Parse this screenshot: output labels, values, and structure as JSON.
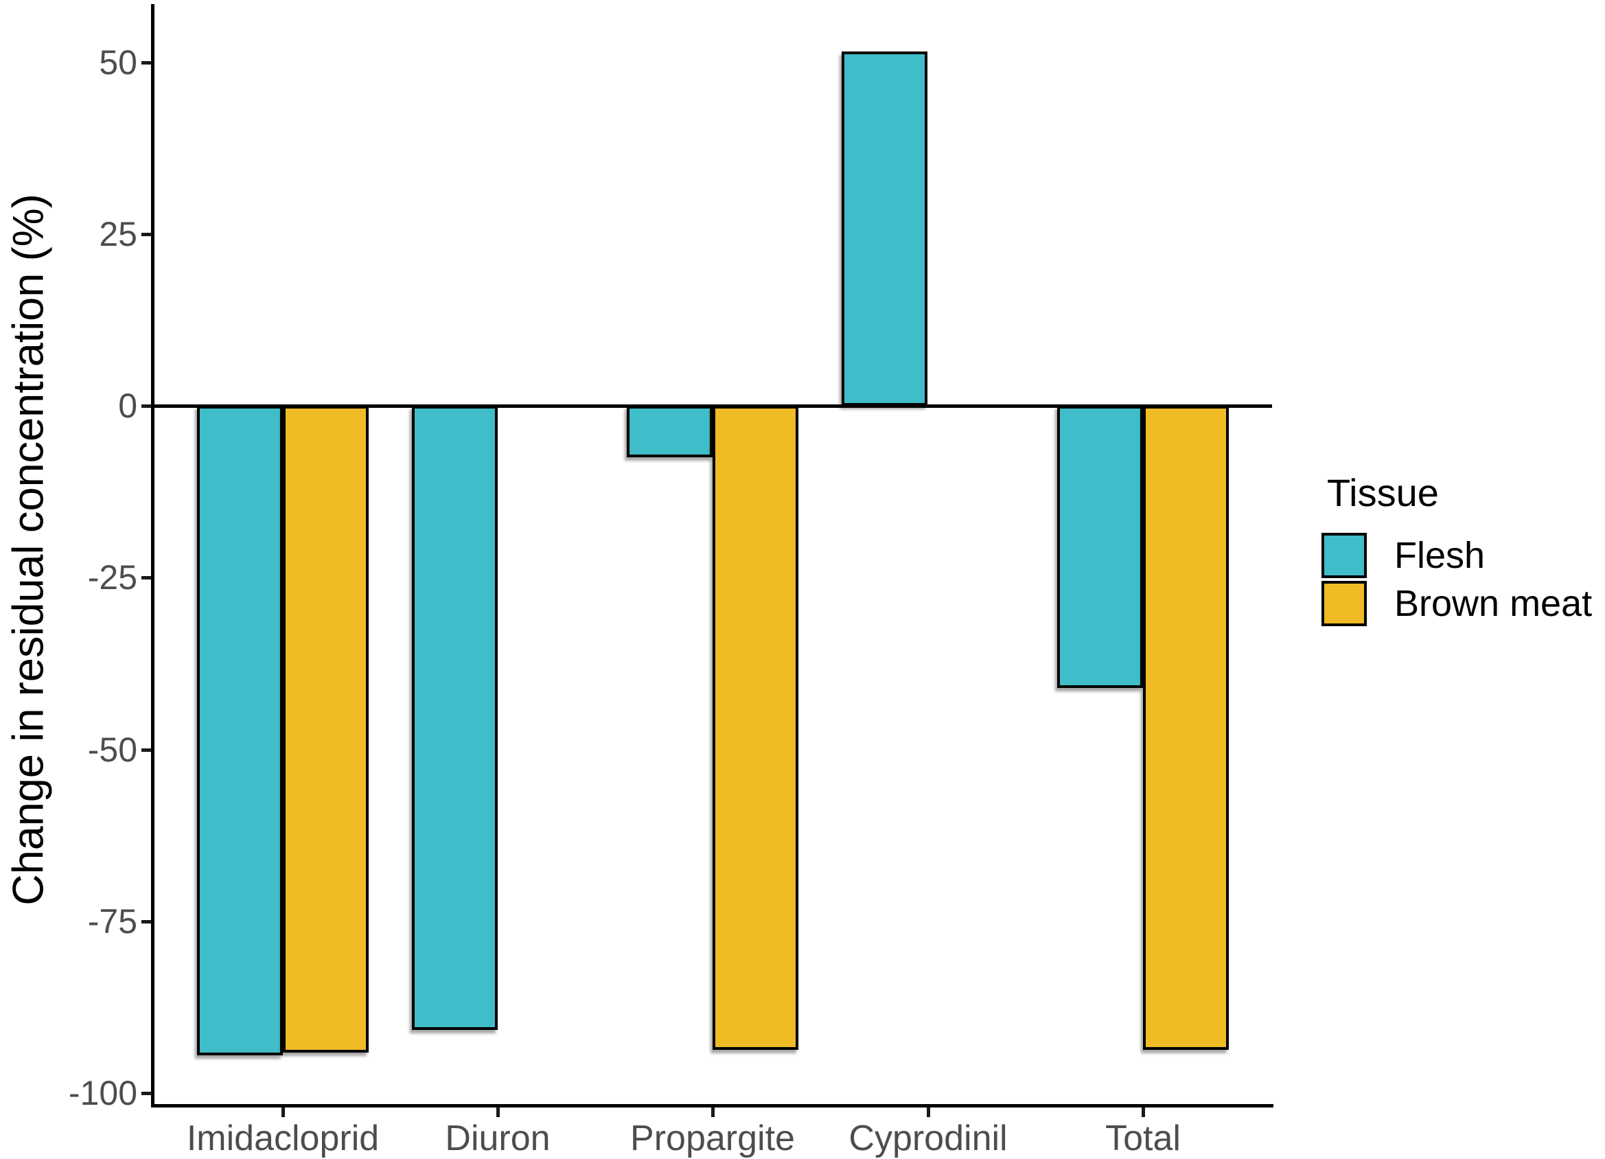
{
  "chart_data": {
    "type": "bar",
    "title": "",
    "xlabel": "",
    "ylabel": "Change in residual concentration (%)",
    "categories": [
      "Imidacloprid",
      "Diuron",
      "Propargite",
      "Cyprodinil",
      "Total"
    ],
    "series": [
      {
        "name": "Flesh",
        "color": "#3FBDC8",
        "values": [
          -94.5,
          -90.8,
          -7.5,
          51.5,
          -41.1
        ]
      },
      {
        "name": "Brown meat",
        "color": "#F0BB24",
        "values": [
          -94.1,
          null,
          -93.7,
          null,
          -93.7
        ]
      }
    ],
    "y_ticks": [
      50,
      25,
      0,
      -25,
      -50,
      -75,
      -100
    ],
    "ylim": [
      -101.5,
      58
    ],
    "baseline": 0,
    "grid": false,
    "legend": {
      "title": "Tissue",
      "position": "right",
      "entries": [
        "Flesh",
        "Brown meat"
      ]
    },
    "styles": {
      "axis_text_color": "#4d4d4d",
      "axis_line_color": "#000000",
      "bar_border_color": "#000000",
      "background": "#ffffff"
    }
  }
}
